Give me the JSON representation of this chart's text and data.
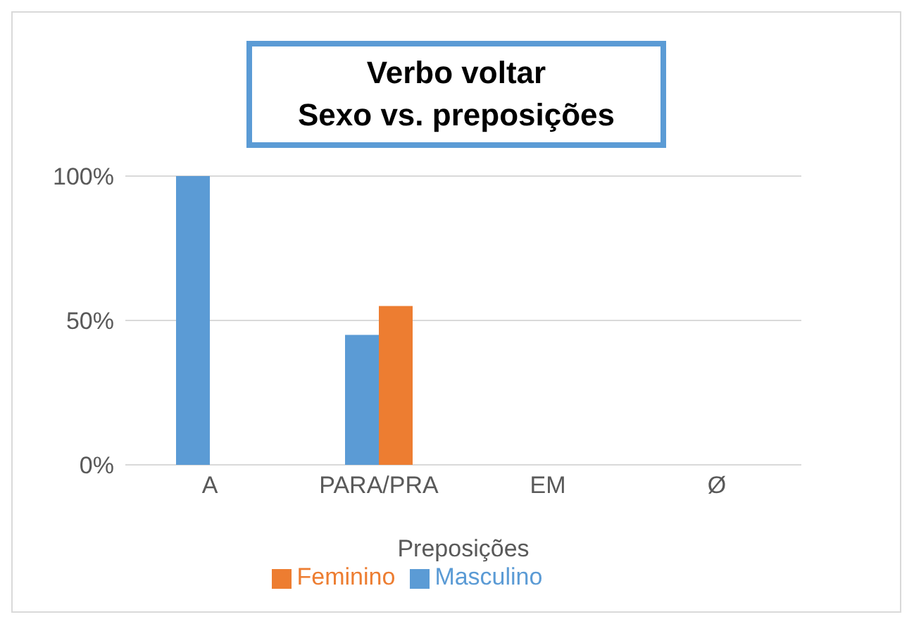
{
  "chart_data": {
    "type": "bar",
    "title": "Verbo voltar",
    "subtitle": "Sexo vs. preposições",
    "xlabel": "Preposições",
    "categories": [
      "A",
      "PARA/PRA",
      "EM",
      "Ø"
    ],
    "series": [
      {
        "name": "Masculino",
        "color": "#5b9bd5",
        "values": [
          100,
          45,
          0,
          0
        ]
      },
      {
        "name": "Feminino",
        "color": "#ed7d31",
        "values": [
          0,
          55,
          0,
          0
        ]
      }
    ],
    "ylim": [
      0,
      100
    ],
    "yticks": [
      {
        "value": 0,
        "label": "0%"
      },
      {
        "value": 50,
        "label": "50%"
      },
      {
        "value": 100,
        "label": "100%"
      }
    ],
    "grid": "y",
    "legend": "bottom"
  }
}
